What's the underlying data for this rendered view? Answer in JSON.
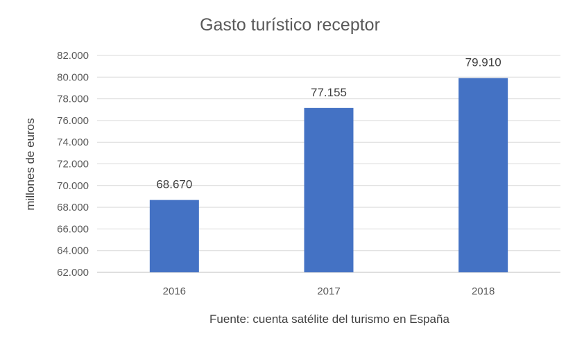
{
  "chart_data": {
    "type": "bar",
    "title": "Gasto turístico receptor",
    "xlabel": "Fuente: cuenta satélite del turismo en España",
    "ylabel": "millones de euros",
    "categories": [
      "2016",
      "2017",
      "2018"
    ],
    "values": [
      68670,
      77155,
      79910
    ],
    "data_labels": [
      "68.670",
      "77.155",
      "79.910"
    ],
    "ylim": [
      62000,
      82000
    ],
    "yticks": [
      62000,
      64000,
      66000,
      68000,
      70000,
      72000,
      74000,
      76000,
      78000,
      80000,
      82000
    ],
    "ytick_labels": [
      "62.000",
      "64.000",
      "66.000",
      "68.000",
      "70.000",
      "72.000",
      "74.000",
      "76.000",
      "78.000",
      "80.000",
      "82.000"
    ],
    "grid": true,
    "legend": "none",
    "bar_color": "#4472c4"
  }
}
